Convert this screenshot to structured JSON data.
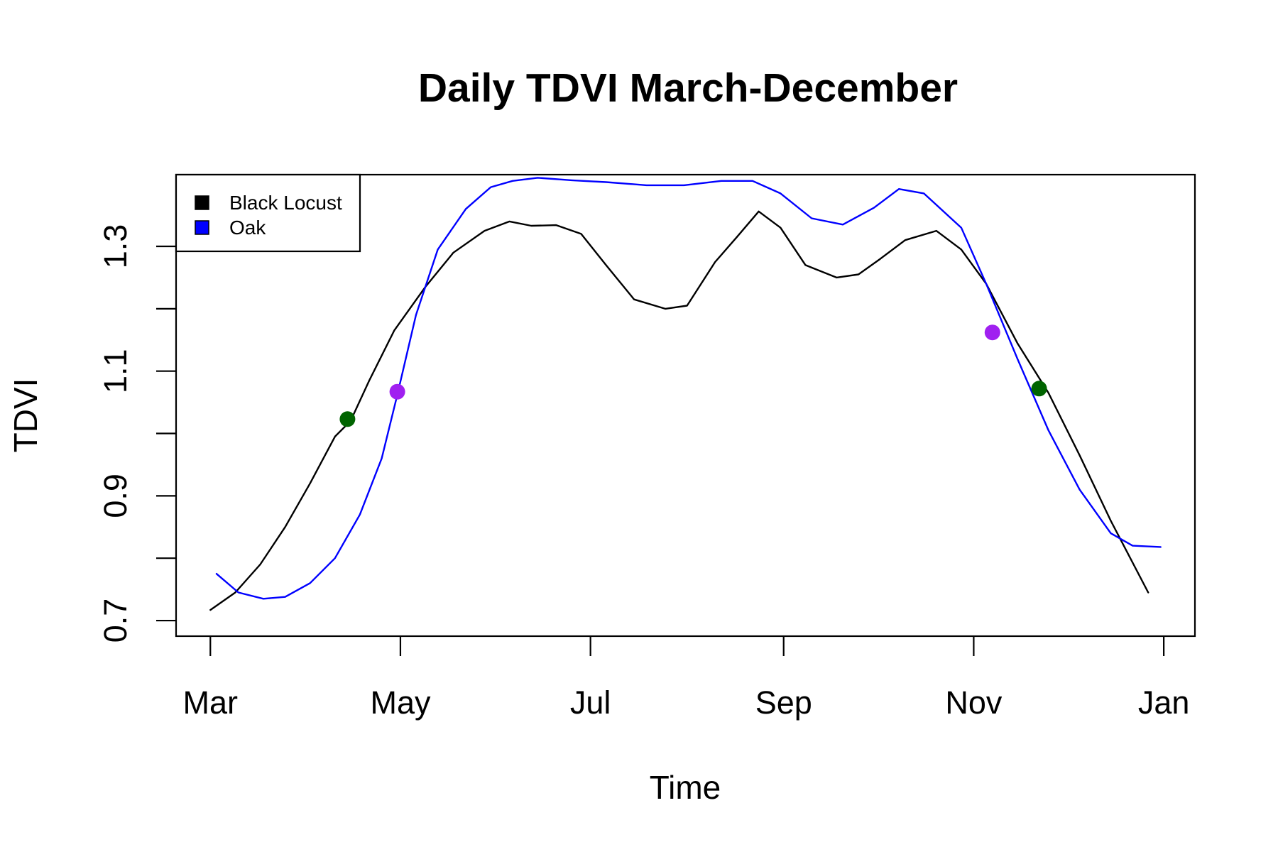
{
  "chart_data": {
    "type": "line",
    "title": "Daily TDVI March-December",
    "xlabel": "Time",
    "ylabel": "TDVI",
    "x_ticks": [
      "2000-03-01",
      "2000-05-01",
      "2000-07-01",
      "2000-09-01",
      "2000-11-01",
      "2001-01-01"
    ],
    "x_tick_labels": [
      "Mar",
      "May",
      "Jul",
      "Sep",
      "Nov",
      "Jan"
    ],
    "y_ticks": [
      0.7,
      0.9,
      1.1,
      1.3
    ],
    "y_tick_labels": [
      "0.7",
      "0.9",
      "1.1",
      "1.3"
    ],
    "xlim": [
      "2000-02-19",
      "2001-01-11"
    ],
    "ylim": [
      0.675,
      1.415
    ],
    "legend": {
      "position": "top-left",
      "entries": [
        "Black Locust",
        "Oak"
      ]
    },
    "series": [
      {
        "name": "Black Locust",
        "color": "#000000",
        "points": [
          [
            "2000-03-01",
            0.717
          ],
          [
            "2000-03-09",
            0.745
          ],
          [
            "2000-03-17",
            0.79
          ],
          [
            "2000-03-25",
            0.85
          ],
          [
            "2000-04-02",
            0.92
          ],
          [
            "2000-04-10",
            0.995
          ],
          [
            "2000-04-15",
            1.02
          ],
          [
            "2000-04-21",
            1.085
          ],
          [
            "2000-04-29",
            1.165
          ],
          [
            "2000-05-09",
            1.235
          ],
          [
            "2000-05-18",
            1.29
          ],
          [
            "2000-05-28",
            1.325
          ],
          [
            "2000-06-05",
            1.34
          ],
          [
            "2000-06-12",
            1.333
          ],
          [
            "2000-06-20",
            1.334
          ],
          [
            "2000-06-28",
            1.32
          ],
          [
            "2000-07-06",
            1.27
          ],
          [
            "2000-07-15",
            1.215
          ],
          [
            "2000-07-25",
            1.2
          ],
          [
            "2000-08-01",
            1.205
          ],
          [
            "2000-08-10",
            1.275
          ],
          [
            "2000-08-17",
            1.315
          ],
          [
            "2000-08-24",
            1.356
          ],
          [
            "2000-08-31",
            1.33
          ],
          [
            "2000-09-08",
            1.27
          ],
          [
            "2000-09-18",
            1.25
          ],
          [
            "2000-09-25",
            1.255
          ],
          [
            "2000-10-02",
            1.28
          ],
          [
            "2000-10-10",
            1.31
          ],
          [
            "2000-10-20",
            1.325
          ],
          [
            "2000-10-28",
            1.295
          ],
          [
            "2000-11-05",
            1.24
          ],
          [
            "2000-11-15",
            1.145
          ],
          [
            "2000-11-25",
            1.065
          ],
          [
            "2000-12-05",
            0.965
          ],
          [
            "2000-12-15",
            0.86
          ],
          [
            "2000-12-27",
            0.745
          ]
        ]
      },
      {
        "name": "Oak",
        "color": "#0000ff",
        "points": [
          [
            "2000-03-03",
            0.775
          ],
          [
            "2000-03-10",
            0.745
          ],
          [
            "2000-03-18",
            0.735
          ],
          [
            "2000-03-25",
            0.738
          ],
          [
            "2000-04-02",
            0.76
          ],
          [
            "2000-04-10",
            0.8
          ],
          [
            "2000-04-18",
            0.87
          ],
          [
            "2000-04-25",
            0.96
          ],
          [
            "2000-04-30",
            1.062
          ],
          [
            "2000-05-06",
            1.19
          ],
          [
            "2000-05-13",
            1.295
          ],
          [
            "2000-05-22",
            1.36
          ],
          [
            "2000-05-30",
            1.395
          ],
          [
            "2000-06-06",
            1.405
          ],
          [
            "2000-06-14",
            1.41
          ],
          [
            "2000-06-25",
            1.406
          ],
          [
            "2000-07-06",
            1.403
          ],
          [
            "2000-07-19",
            1.398
          ],
          [
            "2000-07-31",
            1.398
          ],
          [
            "2000-08-12",
            1.405
          ],
          [
            "2000-08-22",
            1.405
          ],
          [
            "2000-08-31",
            1.385
          ],
          [
            "2000-09-10",
            1.345
          ],
          [
            "2000-09-20",
            1.335
          ],
          [
            "2000-09-30",
            1.362
          ],
          [
            "2000-10-08",
            1.392
          ],
          [
            "2000-10-16",
            1.385
          ],
          [
            "2000-10-28",
            1.33
          ],
          [
            "2000-11-05",
            1.24
          ],
          [
            "2000-11-15",
            1.12
          ],
          [
            "2000-11-25",
            1.005
          ],
          [
            "2000-12-05",
            0.91
          ],
          [
            "2000-12-15",
            0.84
          ],
          [
            "2000-12-22",
            0.82
          ],
          [
            "2000-12-31",
            0.818
          ]
        ]
      }
    ],
    "markers": [
      {
        "x": "2000-04-14",
        "y": 1.023,
        "color": "#006400"
      },
      {
        "x": "2000-04-30",
        "y": 1.067,
        "color": "#a020f0"
      },
      {
        "x": "2000-11-07",
        "y": 1.162,
        "color": "#a020f0"
      },
      {
        "x": "2000-11-22",
        "y": 1.072,
        "color": "#006400"
      }
    ]
  }
}
